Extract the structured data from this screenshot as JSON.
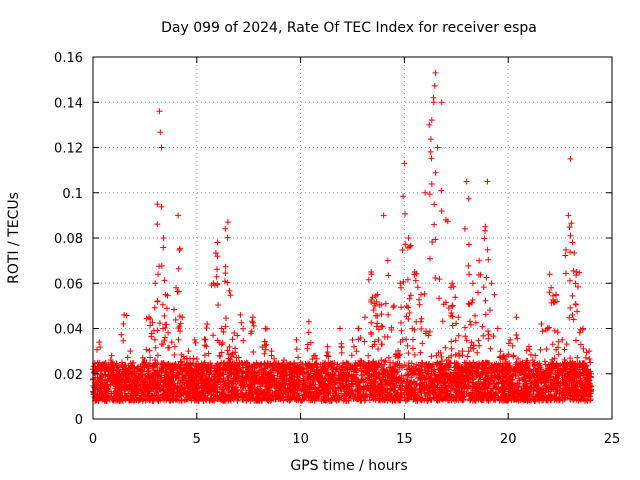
{
  "chart_data": {
    "type": "scatter",
    "title": "Day 099 of 2024, Rate Of TEC Index for receiver espa",
    "xlabel": "GPS time / hours",
    "ylabel": "ROTI / TECUs",
    "xlim": [
      0,
      25
    ],
    "ylim": [
      0,
      0.16
    ],
    "xticks": [
      0,
      5,
      10,
      15,
      20,
      25
    ],
    "xtick_labels": [
      "0",
      "5",
      "10",
      "15",
      "20",
      "25"
    ],
    "yticks": [
      0,
      0.02,
      0.04,
      0.06,
      0.08,
      0.1,
      0.12,
      0.14,
      0.16
    ],
    "ytick_labels": [
      "0",
      "0.02",
      "0.04",
      "0.06",
      "0.08",
      "0.1",
      "0.12",
      "0.14",
      "0.16"
    ],
    "grid": true,
    "marker": "+",
    "series_color": "#ff0000",
    "series": [
      {
        "name": "ROTI",
        "x": [
          0.0,
          0.3,
          0.6,
          0.9,
          1.2,
          1.5,
          1.8,
          2.1,
          2.4,
          2.7,
          3.0,
          3.1,
          3.2,
          3.3,
          3.4,
          3.5,
          3.8,
          4.0,
          4.1,
          4.3,
          4.6,
          4.9,
          5.2,
          5.5,
          5.8,
          6.0,
          6.2,
          6.5,
          6.8,
          7.1,
          7.4,
          7.7,
          8.0,
          8.3,
          8.6,
          8.9,
          9.2,
          9.5,
          9.8,
          10.1,
          10.4,
          10.7,
          11.0,
          11.3,
          11.6,
          11.9,
          12.2,
          12.5,
          12.8,
          13.1,
          13.4,
          13.7,
          14.0,
          14.2,
          14.5,
          14.8,
          15.0,
          15.2,
          15.5,
          15.8,
          16.0,
          16.2,
          16.4,
          16.5,
          16.6,
          16.8,
          17.0,
          17.3,
          17.6,
          17.8,
          18.0,
          18.3,
          18.6,
          18.9,
          19.0,
          19.2,
          19.5,
          19.8,
          20.1,
          20.4,
          20.7,
          21.0,
          21.3,
          21.6,
          21.9,
          22.0,
          22.3,
          22.6,
          22.9,
          23.0,
          23.1,
          23.3,
          23.6,
          23.9,
          24.0
        ],
        "y": [
          0.022,
          0.034,
          0.015,
          0.028,
          0.02,
          0.046,
          0.03,
          0.018,
          0.027,
          0.045,
          0.06,
          0.095,
          0.136,
          0.12,
          0.08,
          0.055,
          0.034,
          0.058,
          0.09,
          0.045,
          0.03,
          0.035,
          0.022,
          0.042,
          0.06,
          0.078,
          0.04,
          0.087,
          0.038,
          0.046,
          0.025,
          0.045,
          0.018,
          0.04,
          0.03,
          0.022,
          0.026,
          0.018,
          0.035,
          0.02,
          0.043,
          0.028,
          0.022,
          0.032,
          0.018,
          0.04,
          0.025,
          0.035,
          0.04,
          0.045,
          0.065,
          0.055,
          0.09,
          0.07,
          0.05,
          0.06,
          0.113,
          0.08,
          0.065,
          0.055,
          0.1,
          0.13,
          0.142,
          0.153,
          0.12,
          0.14,
          0.088,
          0.06,
          0.045,
          0.03,
          0.105,
          0.06,
          0.07,
          0.085,
          0.105,
          0.06,
          0.04,
          0.028,
          0.035,
          0.045,
          0.025,
          0.032,
          0.028,
          0.042,
          0.04,
          0.064,
          0.055,
          0.035,
          0.09,
          0.115,
          0.078,
          0.065,
          0.04,
          0.03,
          0.02
        ],
        "background_band": {
          "hours": [
            0,
            24
          ],
          "min": 0.008,
          "typical_max": 0.025
        }
      }
    ]
  }
}
